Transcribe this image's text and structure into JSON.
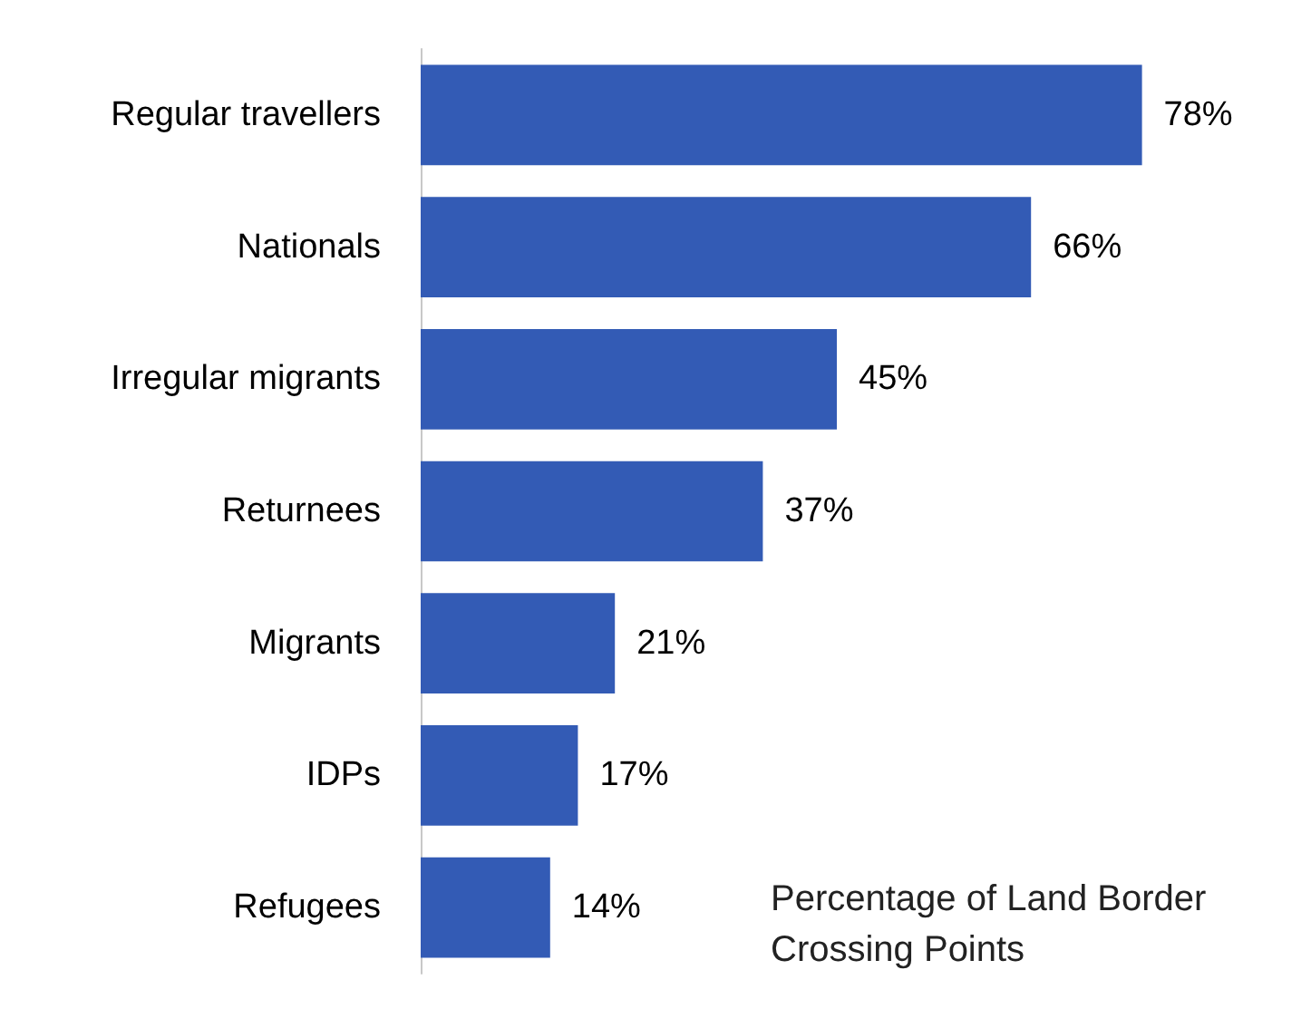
{
  "chart_data": {
    "type": "bar",
    "orientation": "horizontal",
    "categories": [
      "Regular travellers",
      "Nationals",
      "Irregular migrants",
      "Returnees",
      "Migrants",
      "IDPs",
      "Refugees"
    ],
    "values": [
      78,
      66,
      45,
      37,
      21,
      17,
      14
    ],
    "value_labels": [
      "78%",
      "66%",
      "45%",
      "37%",
      "21%",
      "17%",
      "14%"
    ],
    "color": "#335bb5",
    "xlabel": "Percentage of Land Border Crossing Points"
  }
}
